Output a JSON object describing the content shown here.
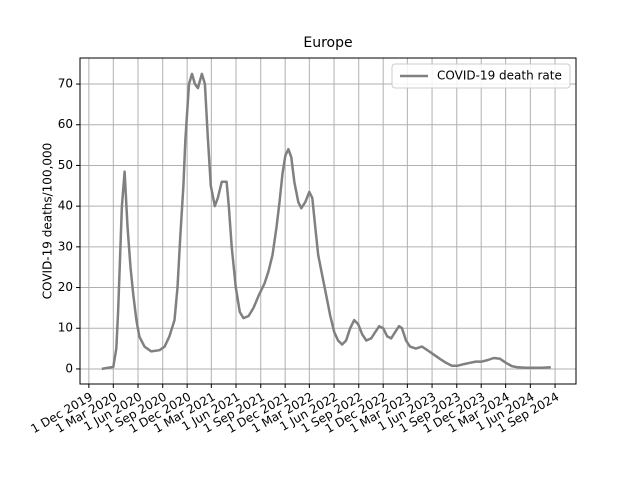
{
  "chart_data": {
    "type": "line",
    "title": "Europe",
    "ylabel": "COVID-19 deaths/100,000",
    "x": [
      "2020-01-18",
      "2020-03-01",
      "2020-03-12",
      "2020-03-19",
      "2020-03-26",
      "2020-04-02",
      "2020-04-12",
      "2020-04-23",
      "2020-05-04",
      "2020-05-15",
      "2020-05-26",
      "2020-06-06",
      "2020-06-25",
      "2020-07-20",
      "2020-08-20",
      "2020-09-08",
      "2020-09-26",
      "2020-10-15",
      "2020-10-26",
      "2020-11-06",
      "2020-11-17",
      "2020-11-24",
      "2020-12-02",
      "2020-12-08",
      "2020-12-19",
      "2020-12-30",
      "2021-01-10",
      "2021-01-25",
      "2021-02-05",
      "2021-02-16",
      "2021-02-27",
      "2021-03-14",
      "2021-03-25",
      "2021-04-09",
      "2021-04-27",
      "2021-05-05",
      "2021-05-16",
      "2021-05-31",
      "2021-06-15",
      "2021-06-29",
      "2021-07-18",
      "2021-08-05",
      "2021-08-24",
      "2021-09-15",
      "2021-09-30",
      "2021-10-15",
      "2021-10-30",
      "2021-11-10",
      "2021-11-21",
      "2021-12-02",
      "2021-12-13",
      "2021-12-24",
      "2022-01-04",
      "2022-01-19",
      "2022-01-30",
      "2022-02-14",
      "2022-03-01",
      "2022-03-12",
      "2022-03-23",
      "2022-04-03",
      "2022-04-18",
      "2022-05-03",
      "2022-05-18",
      "2022-06-02",
      "2022-06-16",
      "2022-07-01",
      "2022-07-16",
      "2022-07-31",
      "2022-08-15",
      "2022-08-30",
      "2022-09-14",
      "2022-09-29",
      "2022-10-17",
      "2022-11-01",
      "2022-11-16",
      "2022-12-01",
      "2022-12-16",
      "2022-12-31",
      "2023-01-14",
      "2023-01-29",
      "2023-02-09",
      "2023-02-24",
      "2023-03-11",
      "2023-04-02",
      "2023-04-24",
      "2023-05-17",
      "2023-06-08",
      "2023-06-30",
      "2023-07-23",
      "2023-08-14",
      "2023-09-05",
      "2023-09-28",
      "2023-10-20",
      "2023-11-11",
      "2023-12-04",
      "2023-12-26",
      "2024-01-17",
      "2024-02-09",
      "2024-03-02",
      "2024-03-24",
      "2024-04-15",
      "2024-05-15",
      "2024-06-14",
      "2024-07-14",
      "2024-08-16"
    ],
    "series": [
      {
        "name": "COVID-19 death rate",
        "color": "#808080",
        "values": [
          0,
          0.5,
          5,
          14,
          27,
          40,
          48.5,
          35,
          25,
          18,
          12,
          8,
          5.5,
          4.3,
          4.6,
          5.5,
          8,
          12,
          20,
          33,
          45,
          56,
          64,
          70,
          72.5,
          70,
          69,
          72.5,
          70,
          57,
          45,
          40,
          42,
          46,
          46,
          40,
          30,
          20,
          14,
          12.5,
          13,
          15,
          18,
          21,
          24,
          28,
          35,
          41,
          48,
          52.5,
          54,
          52,
          46,
          41,
          39.5,
          41,
          43.5,
          42,
          35,
          28,
          23,
          18,
          13,
          9,
          7,
          6,
          7,
          10,
          12,
          11,
          8.5,
          7,
          7.5,
          9,
          10.5,
          10,
          8,
          7.5,
          9,
          10.5,
          10,
          7,
          5.5,
          5,
          5.5,
          4.5,
          3.5,
          2.5,
          1.5,
          0.8,
          0.8,
          1.2,
          1.5,
          1.8,
          1.8,
          2.2,
          2.7,
          2.5,
          1.5,
          0.7,
          0.4,
          0.3,
          0.3,
          0.3,
          0.4
        ]
      }
    ],
    "xlim": [
      "2019-10-29",
      "2024-11-18"
    ],
    "xticks": [
      {
        "value": "2019-12-01",
        "label": "1 Dec 2019"
      },
      {
        "value": "2020-03-01",
        "label": "1 Mar 2020"
      },
      {
        "value": "2020-06-01",
        "label": "1 Jun 2020"
      },
      {
        "value": "2020-09-01",
        "label": "1 Sep 2020"
      },
      {
        "value": "2020-12-01",
        "label": "1 Dec 2020"
      },
      {
        "value": "2021-03-01",
        "label": "1 Mar 2021"
      },
      {
        "value": "2021-06-01",
        "label": "1 Jun 2021"
      },
      {
        "value": "2021-09-01",
        "label": "1 Sep 2021"
      },
      {
        "value": "2021-12-01",
        "label": "1 Dec 2021"
      },
      {
        "value": "2022-03-01",
        "label": "1 Mar 2022"
      },
      {
        "value": "2022-06-01",
        "label": "1 Jun 2022"
      },
      {
        "value": "2022-09-01",
        "label": "1 Sep 2022"
      },
      {
        "value": "2022-12-01",
        "label": "1 Dec 2022"
      },
      {
        "value": "2023-03-01",
        "label": "1 Mar 2023"
      },
      {
        "value": "2023-06-01",
        "label": "1 Jun 2023"
      },
      {
        "value": "2023-09-01",
        "label": "1 Sep 2023"
      },
      {
        "value": "2023-12-01",
        "label": "1 Dec 2023"
      },
      {
        "value": "2024-03-01",
        "label": "1 Mar 2024"
      },
      {
        "value": "2024-06-01",
        "label": "1 Jun 2024"
      },
      {
        "value": "2024-09-01",
        "label": "1 Sep 2024"
      }
    ],
    "ylim": [
      -3.7,
      76.4
    ],
    "yticks": [
      0,
      10,
      20,
      30,
      40,
      50,
      60,
      70
    ],
    "grid": true,
    "legend": "upper right"
  }
}
